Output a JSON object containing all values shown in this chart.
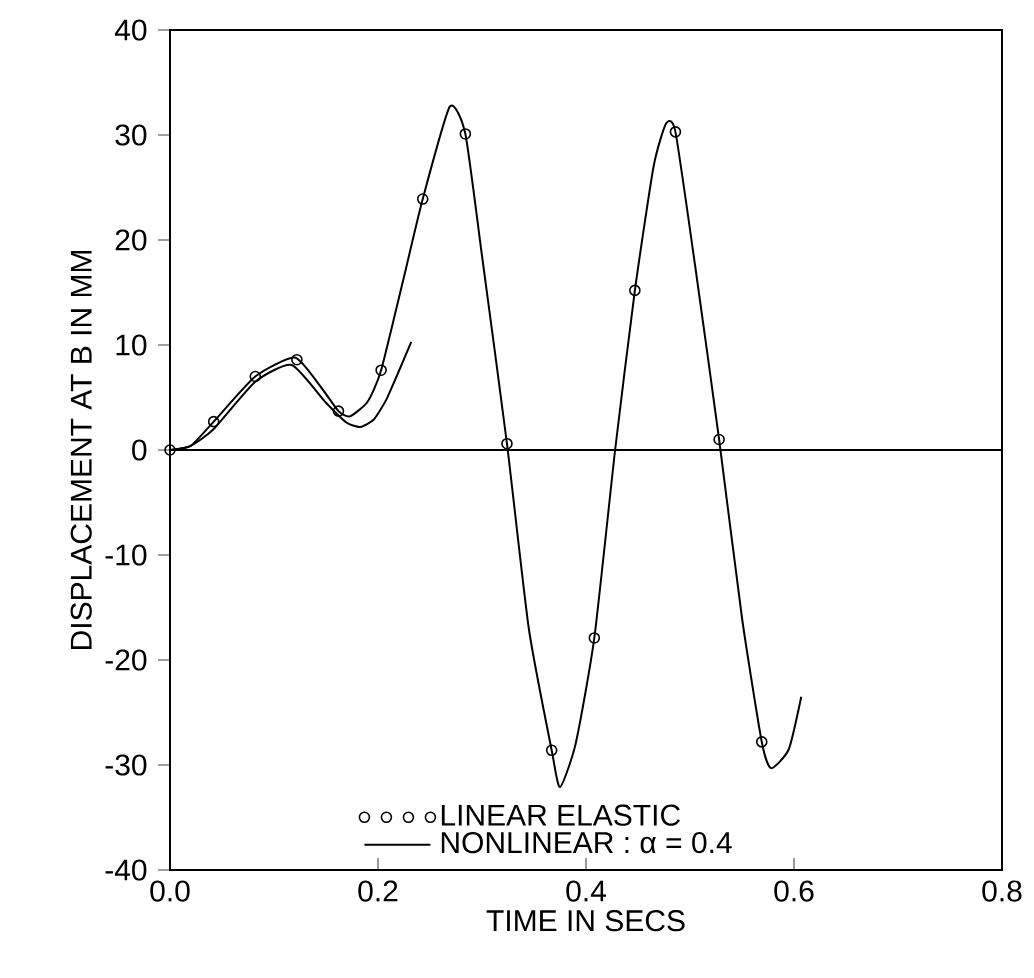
{
  "chart_data": {
    "type": "line",
    "xlabel": "TIME IN SECS",
    "ylabel": "DISPLACEMENT AT B IN MM",
    "xlim": [
      0,
      0.8
    ],
    "ylim": [
      -40,
      40
    ],
    "xticks": [
      {
        "value": 0,
        "label": "0.0"
      },
      0.2,
      0.4,
      0.6,
      0.8
    ],
    "yticks": [
      -40,
      -30,
      -20,
      -10,
      0,
      10,
      20,
      30,
      40
    ],
    "grid": false,
    "legend": "bottom",
    "ref_lines": [
      {
        "axis": "y",
        "value": 0,
        "color": "#000000"
      }
    ],
    "series": [
      {
        "name": "LINEAR ELASTIC",
        "type": "scatter",
        "marker": "circle",
        "color": "#000000",
        "x": [
          0,
          0.042,
          0.082,
          0.122,
          0.162,
          0.203,
          0.243,
          0.284,
          0.324,
          0.367,
          0.408,
          0.447,
          0.486,
          0.528,
          0.569
        ],
        "values": [
          0,
          2.7,
          7.0,
          8.6,
          3.7,
          7.6,
          23.9,
          30.1,
          0.6,
          -28.6,
          -17.9,
          15.2,
          30.3,
          1.0,
          -27.8
        ]
      },
      {
        "color": "#000000",
        "x": [
          0,
          0.02,
          0.042,
          0.082,
          0.12,
          0.145,
          0.162,
          0.173,
          0.19,
          0.203,
          0.225,
          0.243,
          0.269,
          0.284,
          0.3,
          0.324,
          0.345,
          0.367,
          0.375,
          0.39,
          0.408,
          0.428,
          0.447,
          0.465,
          0.477,
          0.486,
          0.505,
          0.528,
          0.55,
          0.569,
          0.578,
          0.595,
          0.607
        ],
        "values": [
          0,
          0.4,
          2.7,
          7.0,
          8.8,
          6.0,
          3.7,
          3.2,
          4.6,
          7.6,
          16.5,
          23.9,
          32.7,
          30.1,
          18.5,
          0.6,
          -17.0,
          -28.6,
          -32.1,
          -28.0,
          -17.9,
          0,
          15.2,
          27.0,
          31.1,
          30.3,
          17.5,
          1.0,
          -16.0,
          -27.8,
          -30.3,
          -28.5,
          -23.5
        ]
      },
      {
        "name": "NONLINEAR : α = 0.4",
        "color": "#000000",
        "x": [
          0,
          0.02,
          0.042,
          0.082,
          0.117,
          0.15,
          0.17,
          0.183,
          0.196,
          0.208,
          0.22,
          0.232
        ],
        "values": [
          0,
          0.4,
          2.0,
          6.5,
          8.1,
          4.5,
          2.6,
          2.2,
          2.9,
          4.8,
          7.5,
          10.3
        ]
      }
    ]
  }
}
